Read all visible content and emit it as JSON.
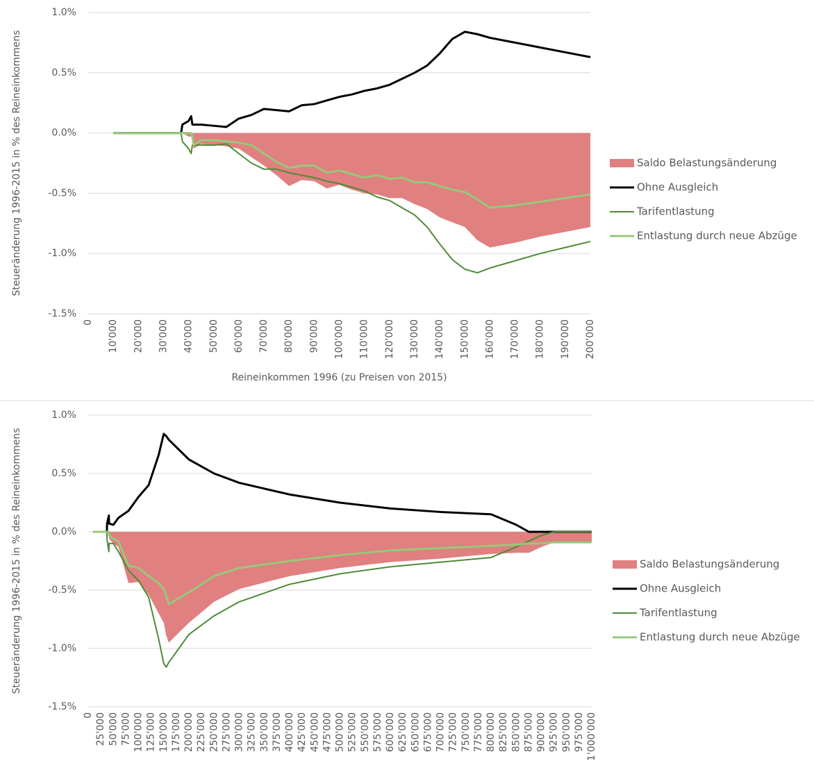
{
  "chart_data": [
    {
      "type": "line",
      "y_label": "Steueränderung 1996-2015 in % des Reineinkommens",
      "x_label": "Reineinkommen 1996 (zu Preisen von 2015)",
      "legend": "right",
      "grid": true,
      "xlim": [
        0,
        200000
      ],
      "ylim": [
        -1.5,
        1.0
      ],
      "yticks": [
        {
          "value": 1.0,
          "label": "1.0%"
        },
        {
          "value": 0.5,
          "label": "0.5%"
        },
        {
          "value": 0.0,
          "label": "0.0%"
        },
        {
          "value": -0.5,
          "label": "-0.5%"
        },
        {
          "value": -1.0,
          "label": "-1.0%"
        },
        {
          "value": -1.5,
          "label": "-1.5%"
        }
      ],
      "xticks": [
        0,
        {
          "value": 10000,
          "label": "10'000"
        },
        {
          "value": 20000,
          "label": "20'000"
        },
        {
          "value": 30000,
          "label": "30'000"
        },
        {
          "value": 40000,
          "label": "40'000"
        },
        {
          "value": 50000,
          "label": "50'000"
        },
        {
          "value": 60000,
          "label": "60'000"
        },
        {
          "value": 70000,
          "label": "70'000"
        },
        {
          "value": 80000,
          "label": "80'000"
        },
        {
          "value": 90000,
          "label": "90'000"
        },
        {
          "value": 100000,
          "label": "100'000"
        },
        {
          "value": 110000,
          "label": "110'000"
        },
        {
          "value": 120000,
          "label": "120'000"
        },
        {
          "value": 130000,
          "label": "130'000"
        },
        {
          "value": 140000,
          "label": "140'000"
        },
        {
          "value": 150000,
          "label": "150'000"
        },
        {
          "value": 160000,
          "label": "160'000"
        },
        {
          "value": 170000,
          "label": "170'000"
        },
        {
          "value": 180000,
          "label": "180'000"
        },
        {
          "value": 190000,
          "label": "190'000"
        },
        {
          "value": 200000,
          "label": "200'000"
        }
      ],
      "x": [
        10000,
        37000,
        37500,
        40000,
        41000,
        41500,
        42000,
        45000,
        50000,
        55000,
        60000,
        65000,
        70000,
        75000,
        80000,
        85000,
        90000,
        95000,
        100000,
        105000,
        110000,
        115000,
        120000,
        125000,
        130000,
        135000,
        140000,
        145000,
        150000,
        155000,
        160000,
        170000,
        180000,
        190000,
        200000
      ],
      "series": [
        {
          "name": "Saldo Belastungsänderung",
          "type": "area",
          "color": "#e08080",
          "values": [
            0,
            0,
            0,
            -0.03,
            -0.03,
            -0.06,
            -0.13,
            -0.09,
            -0.1,
            -0.11,
            -0.13,
            -0.2,
            -0.27,
            -0.35,
            -0.44,
            -0.39,
            -0.4,
            -0.46,
            -0.43,
            -0.47,
            -0.5,
            -0.51,
            -0.54,
            -0.54,
            -0.59,
            -0.63,
            -0.7,
            -0.74,
            -0.78,
            -0.89,
            -0.95,
            -0.91,
            -0.86,
            -0.82,
            -0.78
          ]
        },
        {
          "name": "Ohne Ausgleich",
          "type": "line",
          "color": "#000000",
          "values": [
            0,
            0,
            0.07,
            0.1,
            0.14,
            0.07,
            0.07,
            0.07,
            0.06,
            0.05,
            0.12,
            0.15,
            0.2,
            0.19,
            0.18,
            0.23,
            0.24,
            0.27,
            0.3,
            0.32,
            0.35,
            0.37,
            0.4,
            0.45,
            0.5,
            0.56,
            0.66,
            0.78,
            0.84,
            0.82,
            0.79,
            0.75,
            0.71,
            0.67,
            0.63
          ]
        },
        {
          "name": "Tarifentlastung",
          "type": "line",
          "color": "#4e8a35",
          "values": [
            0,
            0,
            -0.07,
            -0.13,
            -0.17,
            -0.1,
            -0.1,
            -0.1,
            -0.1,
            -0.09,
            -0.17,
            -0.25,
            -0.3,
            -0.3,
            -0.33,
            -0.35,
            -0.37,
            -0.4,
            -0.42,
            -0.45,
            -0.48,
            -0.53,
            -0.56,
            -0.62,
            -0.68,
            -0.78,
            -0.92,
            -1.05,
            -1.13,
            -1.16,
            -1.12,
            -1.06,
            -1.0,
            -0.95,
            -0.9
          ]
        },
        {
          "name": "Entlastung durch neue Abzüge",
          "type": "line",
          "color": "#96c97a",
          "values": [
            0,
            0,
            0,
            0,
            0,
            -0.03,
            -0.1,
            -0.06,
            -0.06,
            -0.07,
            -0.08,
            -0.1,
            -0.17,
            -0.24,
            -0.29,
            -0.27,
            -0.27,
            -0.33,
            -0.31,
            -0.34,
            -0.37,
            -0.35,
            -0.38,
            -0.37,
            -0.41,
            -0.41,
            -0.44,
            -0.47,
            -0.49,
            -0.55,
            -0.62,
            -0.6,
            -0.57,
            -0.54,
            -0.51
          ]
        }
      ]
    },
    {
      "type": "line",
      "y_label": "Steueränderung 1996-2015 in % des Reineinkommens",
      "legend": "right",
      "grid": true,
      "xlim": [
        0,
        1000000
      ],
      "ylim": [
        -1.5,
        1.0
      ],
      "yticks": [
        {
          "value": 1.0,
          "label": "1.0%"
        },
        {
          "value": 0.5,
          "label": "0.5%"
        },
        {
          "value": 0.0,
          "label": "0.0%"
        },
        {
          "value": -0.5,
          "label": "-0.5%"
        },
        {
          "value": -1.0,
          "label": "-1.0%"
        },
        {
          "value": -1.5,
          "label": "-1.5%"
        }
      ],
      "xticks": [
        0,
        {
          "value": 25000,
          "label": "25'000"
        },
        {
          "value": 50000,
          "label": "50'000"
        },
        {
          "value": 75000,
          "label": "75'000"
        },
        {
          "value": 100000,
          "label": "100'000"
        },
        {
          "value": 125000,
          "label": "125'000"
        },
        {
          "value": 150000,
          "label": "150'000"
        },
        {
          "value": 175000,
          "label": "175'000"
        },
        {
          "value": 200000,
          "label": "200'000"
        },
        {
          "value": 225000,
          "label": "225'000"
        },
        {
          "value": 250000,
          "label": "250'000"
        },
        {
          "value": 275000,
          "label": "275'000"
        },
        {
          "value": 300000,
          "label": "300'000"
        },
        {
          "value": 325000,
          "label": "325'000"
        },
        {
          "value": 350000,
          "label": "350'000"
        },
        {
          "value": 375000,
          "label": "375'000"
        },
        {
          "value": 400000,
          "label": "400'000"
        },
        {
          "value": 425000,
          "label": "425'000"
        },
        {
          "value": 450000,
          "label": "450'000"
        },
        {
          "value": 475000,
          "label": "475'000"
        },
        {
          "value": 500000,
          "label": "500'000"
        },
        {
          "value": 525000,
          "label": "525'000"
        },
        {
          "value": 550000,
          "label": "550'000"
        },
        {
          "value": 575000,
          "label": "575'000"
        },
        {
          "value": 600000,
          "label": "600'000"
        },
        {
          "value": 625000,
          "label": "625'000"
        },
        {
          "value": 650000,
          "label": "650'000"
        },
        {
          "value": 675000,
          "label": "675'000"
        },
        {
          "value": 700000,
          "label": "700'000"
        },
        {
          "value": 725000,
          "label": "725'000"
        },
        {
          "value": 750000,
          "label": "750'000"
        },
        {
          "value": 775000,
          "label": "775'000"
        },
        {
          "value": 800000,
          "label": "800'000"
        },
        {
          "value": 825000,
          "label": "825'000"
        },
        {
          "value": 850000,
          "label": "850'000"
        },
        {
          "value": 875000,
          "label": "875'000"
        },
        {
          "value": 900000,
          "label": "900'000"
        },
        {
          "value": 925000,
          "label": "925'000"
        },
        {
          "value": 950000,
          "label": "950'000"
        },
        {
          "value": 975000,
          "label": "975'000"
        },
        {
          "value": 1000000,
          "label": "1'000'000"
        }
      ],
      "x": [
        10000,
        37000,
        37500,
        41000,
        41500,
        50000,
        60000,
        80000,
        100000,
        120000,
        140000,
        150000,
        155000,
        160000,
        200000,
        250000,
        300000,
        400000,
        500000,
        600000,
        700000,
        800000,
        850000,
        875000,
        900000,
        925000,
        1000000
      ],
      "series": [
        {
          "name": "Saldo Belastungsänderung",
          "type": "area",
          "color": "#e08080",
          "values": [
            0,
            0,
            0,
            -0.03,
            -0.06,
            -0.1,
            -0.13,
            -0.44,
            -0.43,
            -0.54,
            -0.7,
            -0.78,
            -0.89,
            -0.95,
            -0.78,
            -0.6,
            -0.49,
            -0.38,
            -0.31,
            -0.26,
            -0.23,
            -0.19,
            -0.18,
            -0.18,
            -0.13,
            -0.09,
            -0.09
          ]
        },
        {
          "name": "Ohne Ausgleich",
          "type": "line",
          "color": "#000000",
          "values": [
            0,
            0,
            0.07,
            0.14,
            0.07,
            0.06,
            0.12,
            0.18,
            0.3,
            0.4,
            0.66,
            0.84,
            0.82,
            0.79,
            0.62,
            0.5,
            0.42,
            0.32,
            0.25,
            0.2,
            0.17,
            0.15,
            0.06,
            0,
            0,
            0,
            0
          ]
        },
        {
          "name": "Tarifentlastung",
          "type": "line",
          "color": "#4e8a35",
          "values": [
            0,
            0,
            -0.07,
            -0.17,
            -0.1,
            -0.1,
            -0.17,
            -0.33,
            -0.42,
            -0.56,
            -0.92,
            -1.13,
            -1.16,
            -1.12,
            -0.88,
            -0.72,
            -0.6,
            -0.45,
            -0.36,
            -0.3,
            -0.26,
            -0.22,
            -0.13,
            -0.08,
            -0.03,
            0,
            0
          ]
        },
        {
          "name": "Entlastung durch neue Abzüge",
          "type": "line",
          "color": "#96c97a",
          "values": [
            0,
            0,
            0,
            0,
            -0.03,
            -0.06,
            -0.08,
            -0.29,
            -0.31,
            -0.38,
            -0.44,
            -0.49,
            -0.55,
            -0.62,
            -0.52,
            -0.38,
            -0.31,
            -0.25,
            -0.2,
            -0.16,
            -0.14,
            -0.12,
            -0.11,
            -0.1,
            -0.1,
            -0.09,
            -0.09
          ]
        }
      ]
    }
  ]
}
